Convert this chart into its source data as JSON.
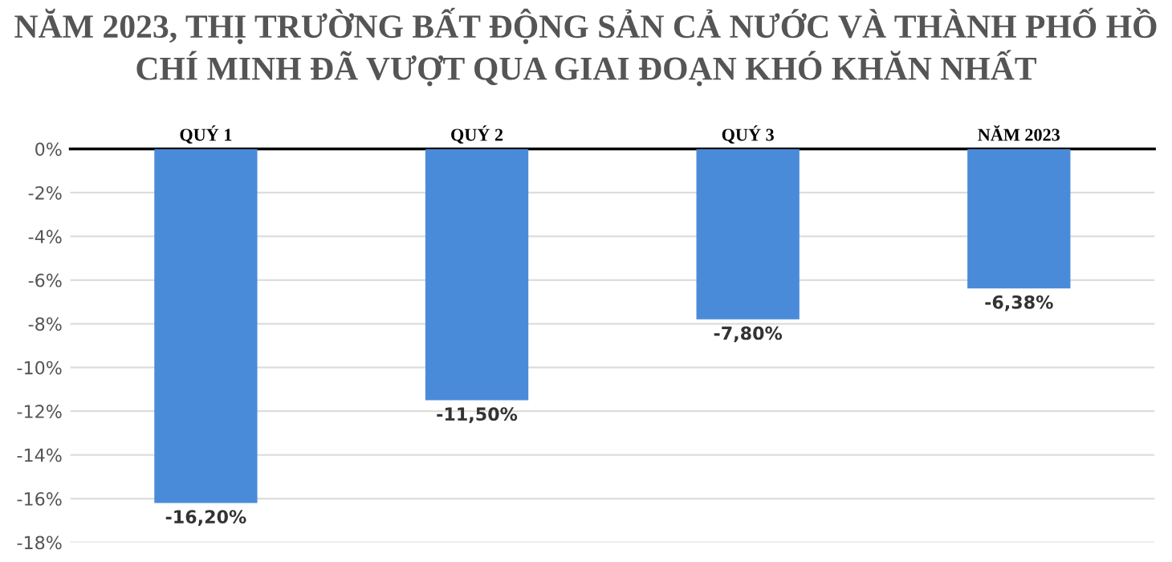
{
  "chart_data": {
    "type": "bar",
    "title": "NĂM 2023, THỊ TRƯỜNG BẤT ĐỘNG SẢN CẢ NƯỚC VÀ THÀNH PHỐ HỒ CHÍ MINH ĐÃ VƯỢT QUA GIAI ĐOẠN KHÓ KHĂN NHẤT",
    "categories": [
      "QUÝ 1",
      "QUÝ 2",
      "QUÝ 3",
      "NĂM 2023"
    ],
    "values": [
      -16.2,
      -11.5,
      -7.8,
      -6.38
    ],
    "value_labels": [
      "-16,20%",
      "-11,50%",
      "-7,80%",
      "-6,38%"
    ],
    "color": "#4a8bd9",
    "ylim": [
      -18,
      0
    ],
    "yticks": [
      {
        "value": -18,
        "label": "-18%"
      },
      {
        "value": -16,
        "label": "-16%"
      },
      {
        "value": -14,
        "label": "-14%"
      },
      {
        "value": -12,
        "label": "-12%"
      },
      {
        "value": -10,
        "label": "-10%"
      },
      {
        "value": -8,
        "label": "-8%"
      },
      {
        "value": -6,
        "label": "-6%"
      },
      {
        "value": -4,
        "label": "-4%"
      },
      {
        "value": -2,
        "label": "-2%"
      },
      {
        "value": 0,
        "label": "0%"
      }
    ],
    "grid": "y"
  }
}
